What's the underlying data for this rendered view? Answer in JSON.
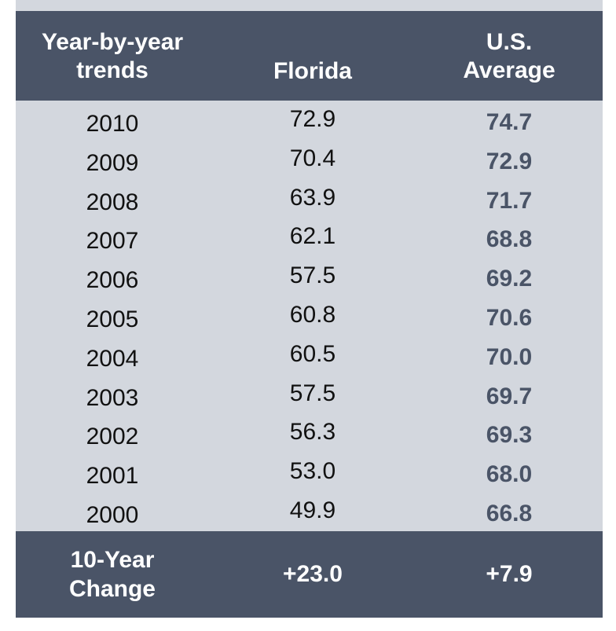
{
  "header": {
    "col1": [
      "Year-by-year",
      "trends"
    ],
    "col2": "Florida",
    "col3": [
      "U.S.",
      "Average"
    ]
  },
  "rows": [
    {
      "year": "2010",
      "florida": "72.9",
      "us": "74.7"
    },
    {
      "year": "2009",
      "florida": "70.4",
      "us": "72.9"
    },
    {
      "year": "2008",
      "florida": "63.9",
      "us": "71.7"
    },
    {
      "year": "2007",
      "florida": "62.1",
      "us": "68.8"
    },
    {
      "year": "2006",
      "florida": "57.5",
      "us": "69.2"
    },
    {
      "year": "2005",
      "florida": "60.8",
      "us": "70.6"
    },
    {
      "year": "2004",
      "florida": "60.5",
      "us": "70.0"
    },
    {
      "year": "2003",
      "florida": "57.5",
      "us": "69.7"
    },
    {
      "year": "2002",
      "florida": "56.3",
      "us": "69.3"
    },
    {
      "year": "2001",
      "florida": "53.0",
      "us": "68.0"
    },
    {
      "year": "2000",
      "florida": "49.9",
      "us": "66.8"
    }
  ],
  "footer": {
    "label": [
      "10-Year",
      "Change"
    ],
    "florida": "+23.0",
    "us": "+7.9"
  },
  "colors": {
    "dark": "#4a5467",
    "light": "#d3d7de"
  }
}
